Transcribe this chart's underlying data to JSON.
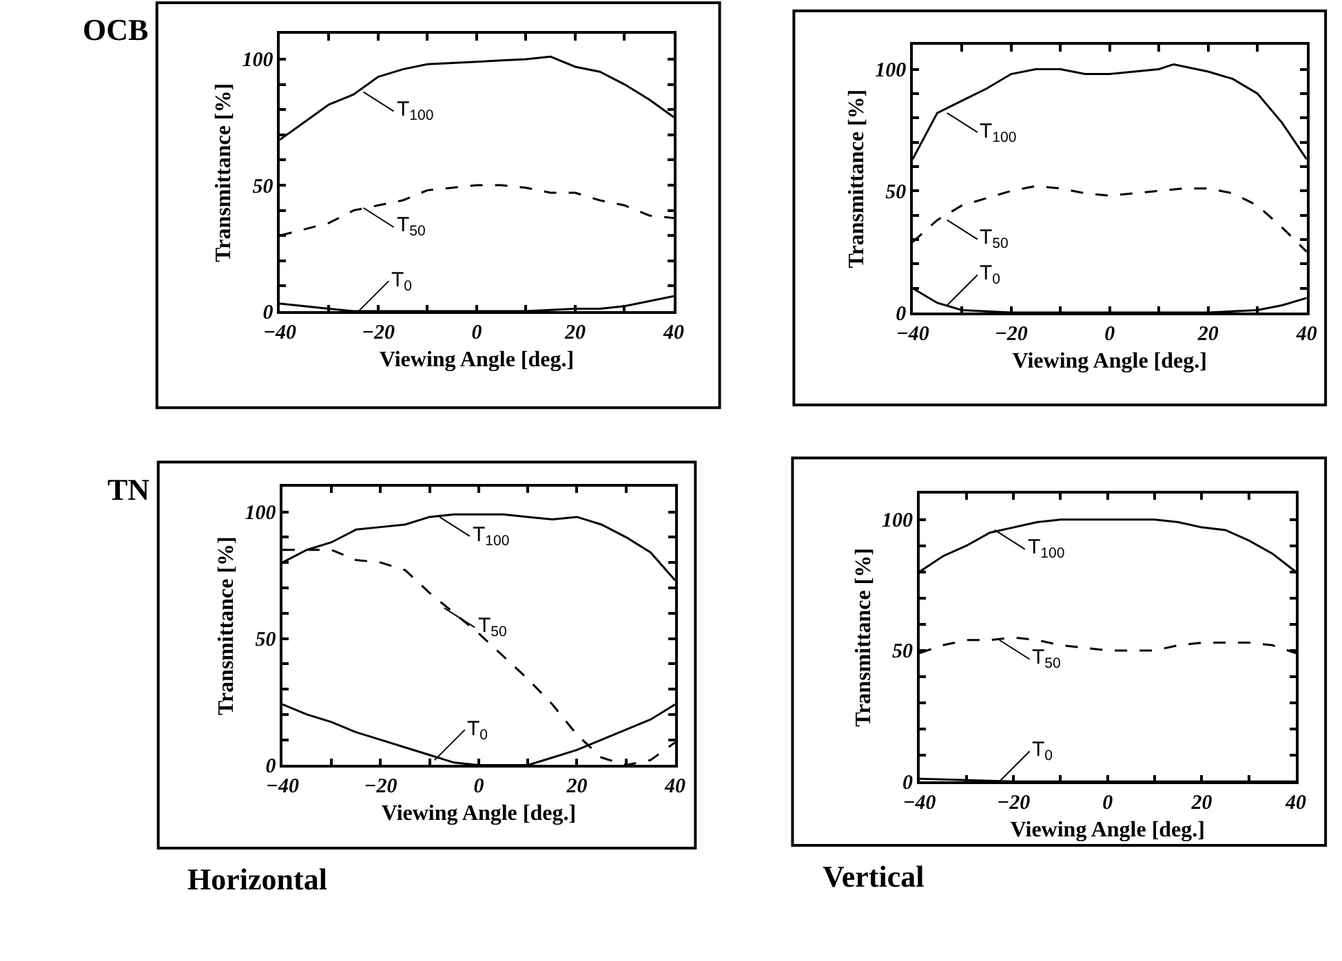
{
  "chart_data": [
    {
      "type": "line",
      "xlabel": "Viewing Angle [deg.]",
      "ylabel": "Transmittance [%]",
      "xlim": [
        -40,
        40
      ],
      "ylim": [
        0,
        110
      ],
      "xticks": [
        -40,
        {
          "value": -30,
          "label": null
        },
        -20,
        {
          "value": -10,
          "label": null
        },
        0,
        {
          "value": 10,
          "label": null
        },
        20,
        {
          "value": 30,
          "label": null
        },
        40
      ],
      "yticks": [
        0,
        {
          "value": 10,
          "label": null
        },
        {
          "value": 20,
          "label": null
        },
        {
          "value": 30,
          "label": null
        },
        {
          "value": 40,
          "label": null
        },
        50,
        {
          "value": 60,
          "label": null
        },
        {
          "value": 70,
          "label": null
        },
        {
          "value": 80,
          "label": null
        },
        {
          "value": 90,
          "label": null
        },
        100
      ],
      "marker": "none",
      "series": [
        {
          "color": "#000000",
          "line_style": "solid",
          "x": [
            -40,
            -35,
            -30,
            -25,
            -20,
            -15,
            -10,
            -5,
            0,
            5,
            10,
            15,
            20,
            25,
            30,
            35,
            40
          ],
          "values": [
            68,
            75,
            82,
            86,
            93,
            96,
            98,
            98.5,
            99,
            99.5,
            100,
            101,
            97,
            95,
            90,
            84,
            77
          ]
        },
        {
          "color": "#000000",
          "line_style": "dashed",
          "x": [
            -40,
            -30,
            -25,
            -20,
            -15,
            -10,
            -5,
            0,
            5,
            10,
            15,
            20,
            25,
            30,
            35,
            40
          ],
          "values": [
            30,
            35,
            40,
            42,
            44,
            48,
            49,
            50,
            50,
            49,
            47,
            47,
            44,
            42,
            38,
            37
          ]
        },
        {
          "color": "#000000",
          "line_style": "solid",
          "x": [
            -40,
            -30,
            -25,
            -20,
            -10,
            0,
            10,
            20,
            25,
            30,
            35,
            40
          ],
          "values": [
            3,
            1,
            0,
            0,
            0,
            0,
            0,
            1,
            1,
            2,
            4,
            6
          ]
        }
      ],
      "annotations": [
        {
          "text": "T$_{100}$",
          "x": -23,
          "y": 87
        },
        {
          "text": "T$_{50}$",
          "x": -23,
          "y": 41
        },
        {
          "text": "T$_{0}$",
          "x": -24,
          "y": 0
        },
        "OCB"
      ]
    },
    {
      "type": "line",
      "xlabel": "Viewing Angle [deg.]",
      "ylabel": "Transmittance [%]",
      "xlim": [
        -40,
        40
      ],
      "ylim": [
        0,
        110
      ],
      "xticks": [
        -40,
        {
          "value": -30,
          "label": null
        },
        -20,
        {
          "value": -10,
          "label": null
        },
        0,
        {
          "value": 10,
          "label": null
        },
        20,
        {
          "value": 30,
          "label": null
        },
        40
      ],
      "yticks": [
        0,
        {
          "value": 10,
          "label": null
        },
        {
          "value": 20,
          "label": null
        },
        {
          "value": 30,
          "label": null
        },
        {
          "value": 40,
          "label": null
        },
        50,
        {
          "value": 60,
          "label": null
        },
        {
          "value": 70,
          "label": null
        },
        {
          "value": 80,
          "label": null
        },
        {
          "value": 90,
          "label": null
        },
        100
      ],
      "marker": "none",
      "series": [
        {
          "color": "#000000",
          "line_style": "solid",
          "x": [
            -40,
            -35,
            -30,
            -25,
            -20,
            -15,
            -10,
            -5,
            0,
            5,
            10,
            13,
            20,
            25,
            30,
            35,
            40
          ],
          "values": [
            63,
            82,
            87,
            92,
            98,
            100,
            100,
            98,
            98,
            99,
            100,
            102,
            99,
            96,
            90,
            78,
            63
          ]
        },
        {
          "color": "#000000",
          "line_style": "dashed",
          "x": [
            -40,
            -35,
            -30,
            -25,
            -20,
            -15,
            -10,
            -5,
            0,
            5,
            10,
            15,
            20,
            25,
            30,
            35,
            40
          ],
          "values": [
            29,
            38,
            44,
            47,
            50,
            52,
            51,
            49,
            48,
            49,
            50,
            51,
            51,
            49,
            44,
            35,
            25
          ]
        },
        {
          "color": "#000000",
          "line_style": "solid",
          "x": [
            -40,
            -35,
            -30,
            -20,
            0,
            20,
            30,
            35,
            40
          ],
          "values": [
            10,
            4,
            1,
            0,
            0,
            0,
            1,
            3,
            6
          ]
        }
      ],
      "annotations": [
        {
          "text": "T$_{100}$",
          "x": -33,
          "y": 82
        },
        {
          "text": "T$_{50}$",
          "x": -33,
          "y": 38
        },
        {
          "text": "T$_{0}$",
          "x": -33,
          "y": 3
        }
      ]
    },
    {
      "type": "line",
      "xlabel": "Viewing Angle [deg.]",
      "ylabel": "Transmittance [%]",
      "xlim": [
        -40,
        40
      ],
      "ylim": [
        0,
        110
      ],
      "xticks": [
        -40,
        {
          "value": -30,
          "label": null
        },
        -20,
        {
          "value": -10,
          "label": null
        },
        0,
        {
          "value": 10,
          "label": null
        },
        20,
        {
          "value": 30,
          "label": null
        },
        40
      ],
      "yticks": [
        0,
        {
          "value": 10,
          "label": null
        },
        {
          "value": 20,
          "label": null
        },
        {
          "value": 30,
          "label": null
        },
        {
          "value": 40,
          "label": null
        },
        50,
        {
          "value": 60,
          "label": null
        },
        {
          "value": 70,
          "label": null
        },
        {
          "value": 80,
          "label": null
        },
        {
          "value": 90,
          "label": null
        },
        100
      ],
      "marker": "none",
      "series": [
        {
          "color": "#000000",
          "line_style": "solid",
          "x": [
            -40,
            -35,
            -30,
            -25,
            -20,
            -15,
            -10,
            -5,
            0,
            5,
            10,
            15,
            20,
            25,
            30,
            35,
            40
          ],
          "values": [
            80,
            85,
            88,
            93,
            94,
            95,
            98,
            99,
            99,
            99,
            98,
            97,
            98,
            95,
            90,
            84,
            73
          ]
        },
        {
          "color": "#000000",
          "line_style": "dashed",
          "x": [
            -40,
            -35,
            -30,
            -25,
            -20,
            -15,
            -10,
            -5,
            0,
            5,
            10,
            15,
            20,
            25,
            30,
            35,
            40
          ],
          "values": [
            85,
            85,
            85,
            81,
            80,
            77,
            68,
            60,
            52,
            43,
            34,
            24,
            12,
            3,
            0,
            2,
            9
          ]
        },
        {
          "color": "#000000",
          "line_style": "solid",
          "x": [
            -40,
            -35,
            -30,
            -25,
            -20,
            -15,
            -10,
            -5,
            0,
            5,
            10,
            15,
            20,
            25,
            30,
            35,
            40
          ],
          "values": [
            24,
            20,
            17,
            13,
            10,
            7,
            4,
            1,
            0,
            0,
            0,
            3,
            6,
            10,
            14,
            18,
            24
          ]
        }
      ],
      "annotations": [
        {
          "text": "T$_{100}$",
          "x": -8,
          "y": 98
        },
        {
          "text": "T$_{50}$",
          "x": -7,
          "y": 62
        },
        {
          "text": "T$_{0}$",
          "x": -9,
          "y": 2
        },
        "TN",
        "Horizontal"
      ]
    },
    {
      "type": "line",
      "xlabel": "Viewing Angle [deg.]",
      "ylabel": "Transmittance [%]",
      "xlim": [
        -40,
        40
      ],
      "ylim": [
        0,
        110
      ],
      "xticks": [
        -40,
        {
          "value": -30,
          "label": null
        },
        -20,
        {
          "value": -10,
          "label": null
        },
        0,
        {
          "value": 10,
          "label": null
        },
        20,
        {
          "value": 30,
          "label": null
        },
        40
      ],
      "yticks": [
        0,
        {
          "value": 10,
          "label": null
        },
        {
          "value": 20,
          "label": null
        },
        {
          "value": 30,
          "label": null
        },
        {
          "value": 40,
          "label": null
        },
        50,
        {
          "value": 60,
          "label": null
        },
        {
          "value": 70,
          "label": null
        },
        {
          "value": 80,
          "label": null
        },
        {
          "value": 90,
          "label": null
        },
        100
      ],
      "marker": "none",
      "series": [
        {
          "color": "#000000",
          "line_style": "solid",
          "x": [
            -40,
            -35,
            -30,
            -25,
            -20,
            -15,
            -10,
            0,
            10,
            15,
            20,
            25,
            30,
            35,
            40
          ],
          "values": [
            80,
            86,
            90,
            95,
            97,
            99,
            100,
            100,
            100,
            99,
            97,
            96,
            92,
            87,
            80
          ]
        },
        {
          "color": "#000000",
          "line_style": "dashed",
          "x": [
            -40,
            -35,
            -30,
            -25,
            -20,
            -15,
            -10,
            -5,
            0,
            5,
            10,
            15,
            20,
            25,
            30,
            35,
            40
          ],
          "values": [
            49,
            52,
            54,
            54,
            55,
            54,
            52,
            51,
            50,
            50,
            50,
            52,
            53,
            53,
            53,
            52,
            49
          ]
        },
        {
          "color": "#000000",
          "line_style": "solid",
          "x": [
            -40,
            -20,
            0,
            20,
            40
          ],
          "values": [
            1,
            0,
            0,
            0,
            0
          ]
        }
      ],
      "annotations": [
        {
          "text": "T$_{100}$",
          "x": -24,
          "y": 96
        },
        {
          "text": "T$_{50}$",
          "x": -23,
          "y": 54
        },
        {
          "text": "T$_{0}$",
          "x": -23,
          "y": 0
        },
        "Vertical"
      ]
    }
  ]
}
